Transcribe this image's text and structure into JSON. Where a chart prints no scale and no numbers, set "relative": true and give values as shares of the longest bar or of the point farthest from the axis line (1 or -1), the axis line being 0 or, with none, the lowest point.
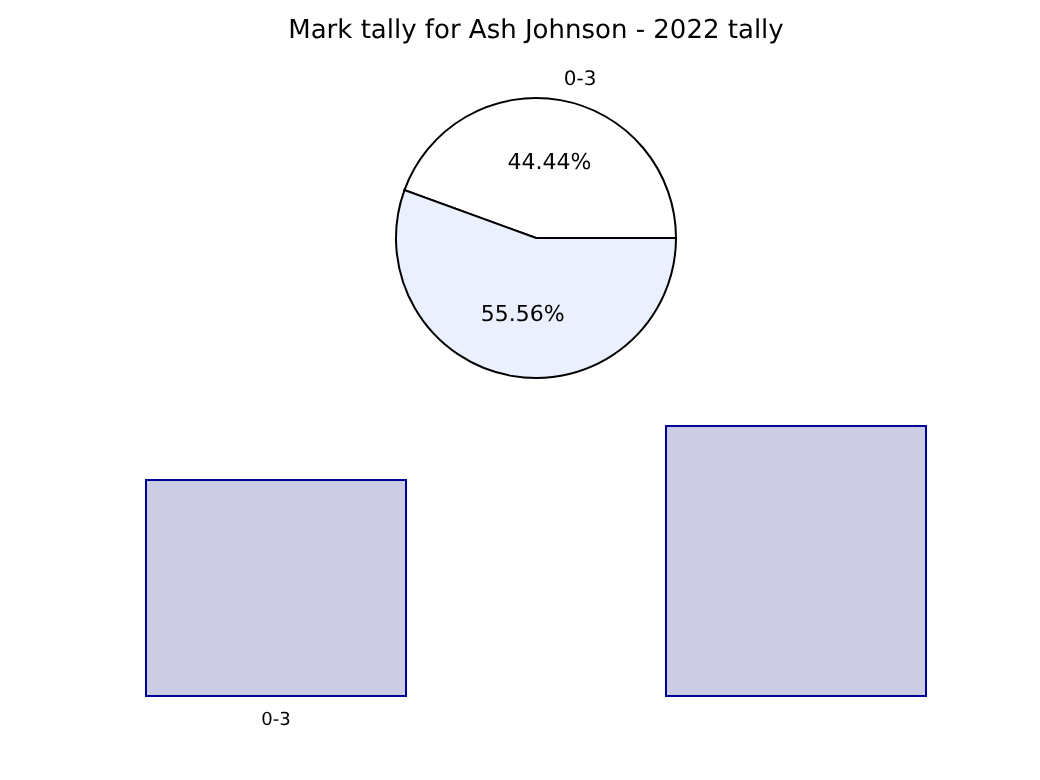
{
  "chart_data": [
    {
      "type": "pie",
      "title": "Mark tally for Ash Johnson - 2022 tally",
      "categories": [
        "0-3",
        null
      ],
      "values": [
        44.44,
        55.56
      ],
      "colors": [
        "#ffffff",
        "#eaf0fd"
      ],
      "value_labels": [
        "44.44%",
        "55.56%"
      ]
    },
    {
      "type": "bar",
      "relative": true,
      "categories": [
        "0-3",
        null
      ],
      "values": [
        0.8,
        1
      ],
      "color": "#cccce4"
    }
  ]
}
